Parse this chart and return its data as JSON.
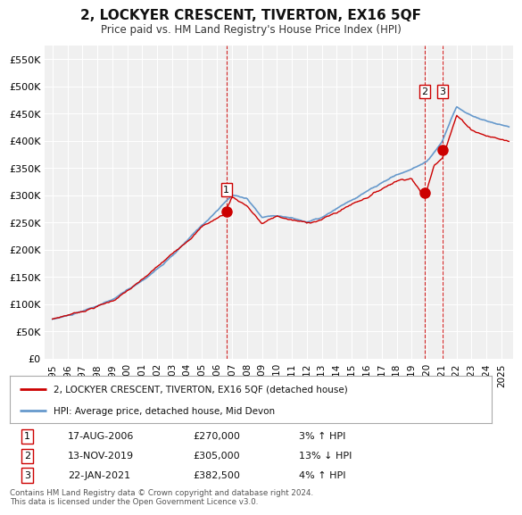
{
  "title": "2, LOCKYER CRESCENT, TIVERTON, EX16 5QF",
  "subtitle": "Price paid vs. HM Land Registry's House Price Index (HPI)",
  "background_color": "#ffffff",
  "plot_bg_color": "#f0f0f0",
  "grid_color": "#ffffff",
  "ylim": [
    0,
    575000
  ],
  "yticks": [
    0,
    50000,
    100000,
    150000,
    200000,
    250000,
    300000,
    350000,
    400000,
    450000,
    500000,
    550000
  ],
  "ytick_labels": [
    "£0",
    "£50K",
    "£100K",
    "£150K",
    "£200K",
    "£250K",
    "£300K",
    "£350K",
    "£400K",
    "£450K",
    "£500K",
    "£550K"
  ],
  "xtick_years": [
    "1995",
    "1996",
    "1997",
    "1998",
    "1999",
    "2000",
    "2001",
    "2002",
    "2003",
    "2004",
    "2005",
    "2006",
    "2007",
    "2008",
    "2009",
    "2010",
    "2011",
    "2012",
    "2013",
    "2014",
    "2015",
    "2016",
    "2017",
    "2018",
    "2019",
    "2020",
    "2021",
    "2022",
    "2023",
    "2024",
    "2025"
  ],
  "hpi_line_color": "#6699cc",
  "price_line_color": "#cc0000",
  "sale_dot_color": "#cc0000",
  "sale_marker_size": 8,
  "transactions": [
    {
      "label": "1",
      "date_num": 2006.63,
      "price": 270000,
      "date_str": "17-AUG-2006",
      "pct_str": "3% ↑ HPI"
    },
    {
      "label": "2",
      "date_num": 2019.87,
      "price": 305000,
      "date_str": "13-NOV-2019",
      "pct_str": "13% ↓ HPI"
    },
    {
      "label": "3",
      "date_num": 2021.06,
      "price": 382500,
      "date_str": "22-JAN-2021",
      "pct_str": "4% ↑ HPI"
    }
  ],
  "label_positions": {
    "1": [
      2006.63,
      310000
    ],
    "2": [
      2019.87,
      490000
    ],
    "3": [
      2021.06,
      490000
    ]
  },
  "dashed_line_color": "#cc0000",
  "legend_box_label1": "2, LOCKYER CRESCENT, TIVERTON, EX16 5QF (detached house)",
  "legend_box_label2": "HPI: Average price, detached house, Mid Devon",
  "footer": "Contains HM Land Registry data © Crown copyright and database right 2024.\nThis data is licensed under the Open Government Licence v3.0.",
  "table_rows": [
    [
      "1",
      "17-AUG-2006",
      "£270,000",
      "3% ↑ HPI"
    ],
    [
      "2",
      "13-NOV-2019",
      "£305,000",
      "13% ↓ HPI"
    ],
    [
      "3",
      "22-JAN-2021",
      "£382,500",
      "4% ↑ HPI"
    ]
  ]
}
